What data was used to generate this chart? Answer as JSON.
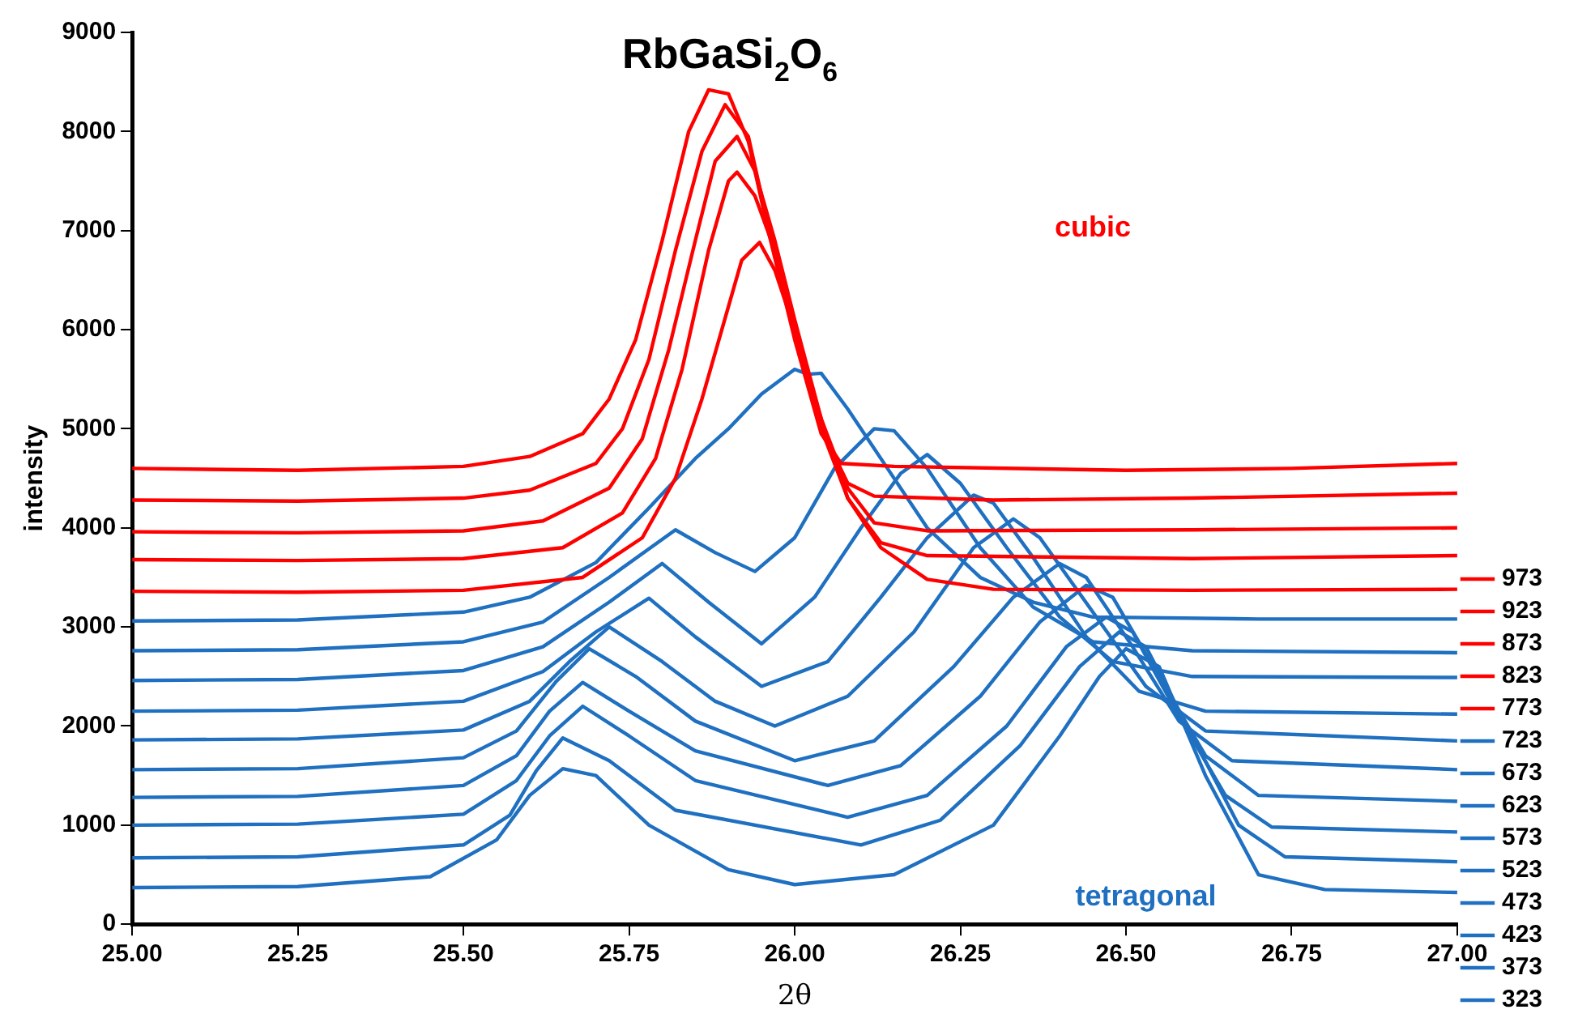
{
  "chart_data": {
    "type": "line",
    "title": "RbGaSi$_{2}$O$_{6}$",
    "xlabel": "2θ",
    "ylabel": "intensity",
    "xlim": [
      25,
      27
    ],
    "xticks": [
      {
        "value": 25,
        "label": "25.00"
      },
      {
        "value": 25.25,
        "label": "25.25"
      },
      {
        "value": 25.5,
        "label": "25.50"
      },
      {
        "value": 25.75,
        "label": "25.75"
      },
      {
        "value": 26,
        "label": "26.00"
      },
      {
        "value": 26.25,
        "label": "26.25"
      },
      {
        "value": 26.5,
        "label": "26.50"
      },
      {
        "value": 26.75,
        "label": "26.75"
      },
      {
        "value": 27,
        "label": "27.00"
      }
    ],
    "ylim": [
      0,
      9000
    ],
    "yticks": [
      0,
      1000,
      2000,
      3000,
      4000,
      5000,
      6000,
      7000,
      8000,
      9000
    ],
    "legend": "right",
    "marker": "none",
    "line_style": "solid",
    "annotations": [
      "cubic",
      "tetragonal"
    ],
    "series": [
      {
        "name": "973",
        "color": "#ff0000",
        "x": [
          25,
          25.25,
          25.5,
          25.6,
          25.68,
          25.72,
          25.76,
          25.8,
          25.84,
          25.87,
          25.9,
          25.93,
          25.96,
          26,
          26.04,
          26.07,
          26.15,
          26.5,
          26.75,
          27
        ],
        "values": [
          4600,
          4580,
          4620,
          4720,
          4950,
          5300,
          5900,
          6900,
          8000,
          8420,
          8380,
          7900,
          7000,
          5900,
          4950,
          4650,
          4620,
          4580,
          4600,
          4650
        ]
      },
      {
        "name": "923",
        "color": "#ff0000",
        "x": [
          25,
          25.25,
          25.5,
          25.6,
          25.7,
          25.74,
          25.78,
          25.82,
          25.86,
          25.895,
          25.93,
          25.96,
          26,
          26.04,
          26.08,
          26.12,
          26.3,
          26.6,
          27
        ],
        "values": [
          4280,
          4270,
          4300,
          4380,
          4650,
          5000,
          5700,
          6800,
          7800,
          8270,
          7950,
          7050,
          5950,
          5000,
          4450,
          4320,
          4280,
          4300,
          4350
        ]
      },
      {
        "name": "873",
        "color": "#ff0000",
        "x": [
          25,
          25.25,
          25.5,
          25.62,
          25.72,
          25.77,
          25.81,
          25.85,
          25.88,
          25.913,
          25.94,
          25.97,
          26,
          26.04,
          26.08,
          26.12,
          26.2,
          26.6,
          27
        ],
        "values": [
          3960,
          3950,
          3970,
          4070,
          4400,
          4900,
          5800,
          6900,
          7700,
          7950,
          7600,
          6900,
          6100,
          5100,
          4400,
          4050,
          3970,
          3980,
          4000
        ]
      },
      {
        "name": "823",
        "color": "#ff0000",
        "x": [
          25,
          25.25,
          25.5,
          25.65,
          25.74,
          25.79,
          25.83,
          25.87,
          25.9,
          25.913,
          25.94,
          25.97,
          26,
          26.04,
          26.08,
          26.13,
          26.2,
          26.6,
          27
        ],
        "values": [
          3680,
          3670,
          3690,
          3800,
          4150,
          4700,
          5600,
          6800,
          7500,
          7590,
          7350,
          6800,
          6000,
          5000,
          4300,
          3850,
          3720,
          3690,
          3720
        ]
      },
      {
        "name": "773",
        "color": "#ff0000",
        "x": [
          25,
          25.25,
          25.5,
          25.68,
          25.77,
          25.82,
          25.86,
          25.89,
          25.92,
          25.947,
          25.97,
          26,
          26.04,
          26.08,
          26.13,
          26.2,
          26.3,
          26.6,
          27
        ],
        "values": [
          3360,
          3350,
          3370,
          3500,
          3900,
          4500,
          5300,
          6000,
          6700,
          6880,
          6600,
          6000,
          5100,
          4300,
          3800,
          3480,
          3380,
          3370,
          3380
        ]
      },
      {
        "name": "723",
        "color": "#1f70c1",
        "x": [
          25,
          25.25,
          25.5,
          25.6,
          25.7,
          25.78,
          25.85,
          25.9,
          25.95,
          26,
          26.02,
          26.04,
          26.08,
          26.14,
          26.2,
          26.28,
          26.36,
          26.45,
          26.7,
          27
        ],
        "values": [
          3060,
          3070,
          3150,
          3300,
          3650,
          4200,
          4700,
          5000,
          5350,
          5600,
          5550,
          5560,
          5200,
          4600,
          4000,
          3500,
          3250,
          3100,
          3080,
          3080
        ]
      },
      {
        "name": "673",
        "color": "#1f70c1",
        "x": [
          25,
          25.25,
          25.5,
          25.62,
          25.72,
          25.82,
          25.88,
          25.94,
          26,
          26.06,
          26.12,
          26.15,
          26.2,
          26.28,
          26.36,
          26.45,
          26.6,
          27
        ],
        "values": [
          2760,
          2770,
          2850,
          3050,
          3500,
          3980,
          3750,
          3560,
          3900,
          4600,
          5000,
          4980,
          4600,
          3800,
          3200,
          2850,
          2760,
          2740
        ]
      },
      {
        "name": "623",
        "color": "#1f70c1",
        "x": [
          25,
          25.25,
          25.5,
          25.62,
          25.72,
          25.8,
          25.87,
          25.95,
          26.03,
          26.1,
          26.16,
          26.2,
          26.25,
          26.32,
          26.4,
          26.48,
          26.6,
          27
        ],
        "values": [
          2460,
          2470,
          2560,
          2800,
          3250,
          3640,
          3250,
          2830,
          3300,
          4000,
          4550,
          4740,
          4450,
          3800,
          3100,
          2650,
          2500,
          2490
        ]
      },
      {
        "name": "573",
        "color": "#1f70c1",
        "x": [
          25,
          25.25,
          25.5,
          25.62,
          25.7,
          25.78,
          25.85,
          25.95,
          26.05,
          26.13,
          26.2,
          26.27,
          26.3,
          26.36,
          26.44,
          26.52,
          26.62,
          27
        ],
        "values": [
          2150,
          2160,
          2250,
          2550,
          2950,
          3290,
          2900,
          2400,
          2650,
          3300,
          3900,
          4330,
          4250,
          3700,
          2900,
          2350,
          2150,
          2120
        ]
      },
      {
        "name": "523",
        "color": "#1f70c1",
        "x": [
          25,
          25.25,
          25.5,
          25.6,
          25.66,
          25.72,
          25.8,
          25.88,
          25.97,
          26.08,
          26.18,
          26.27,
          26.33,
          26.37,
          26.45,
          26.53,
          26.62,
          27
        ],
        "values": [
          1860,
          1870,
          1960,
          2250,
          2650,
          3000,
          2650,
          2250,
          2000,
          2300,
          2950,
          3800,
          4090,
          3900,
          3150,
          2400,
          1950,
          1850
        ]
      },
      {
        "name": "473",
        "color": "#1f70c1",
        "x": [
          25,
          25.25,
          25.5,
          25.58,
          25.64,
          25.69,
          25.76,
          25.85,
          26,
          26.12,
          26.24,
          26.33,
          26.4,
          26.44,
          26.51,
          26.58,
          26.66,
          27
        ],
        "values": [
          1560,
          1570,
          1680,
          1950,
          2450,
          2780,
          2500,
          2050,
          1650,
          1850,
          2600,
          3300,
          3640,
          3500,
          2800,
          2050,
          1650,
          1560
        ]
      },
      {
        "name": "423",
        "color": "#1f70c1",
        "x": [
          25,
          25.25,
          25.5,
          25.58,
          25.63,
          25.68,
          25.75,
          25.85,
          26.05,
          26.16,
          26.28,
          26.37,
          26.44,
          26.48,
          26.55,
          26.62,
          26.7,
          27
        ],
        "values": [
          1280,
          1290,
          1400,
          1700,
          2150,
          2440,
          2150,
          1750,
          1400,
          1600,
          2300,
          3050,
          3420,
          3300,
          2500,
          1700,
          1300,
          1240
        ]
      },
      {
        "name": "373",
        "color": "#1f70c1",
        "x": [
          25,
          25.25,
          25.5,
          25.58,
          25.63,
          25.68,
          25.75,
          25.85,
          26.08,
          26.2,
          26.32,
          26.41,
          26.47,
          26.51,
          26.58,
          26.65,
          26.72,
          27
        ],
        "values": [
          1000,
          1010,
          1110,
          1450,
          1900,
          2200,
          1900,
          1450,
          1080,
          1300,
          2000,
          2800,
          3100,
          2950,
          2100,
          1300,
          980,
          930
        ]
      },
      {
        "name": "323",
        "color": "#1f70c1",
        "x": [
          25,
          25.25,
          25.5,
          25.57,
          25.61,
          25.65,
          25.72,
          25.82,
          26.1,
          26.22,
          26.34,
          26.43,
          26.49,
          26.53,
          26.6,
          26.67,
          26.74,
          27
        ],
        "values": [
          670,
          680,
          800,
          1100,
          1550,
          1880,
          1650,
          1150,
          800,
          1050,
          1800,
          2600,
          2950,
          2800,
          1900,
          1000,
          680,
          630
        ]
      },
      {
        "color": "#1f70c1",
        "x": [
          25,
          25.25,
          25.45,
          25.55,
          25.6,
          25.65,
          25.7,
          25.78,
          25.9,
          26,
          26.15,
          26.3,
          26.4,
          26.46,
          26.5,
          26.55,
          26.62,
          26.7,
          26.8,
          27
        ],
        "values": [
          370,
          380,
          480,
          850,
          1300,
          1570,
          1500,
          1000,
          550,
          400,
          500,
          1000,
          1900,
          2500,
          2780,
          2600,
          1500,
          500,
          350,
          320
        ]
      }
    ]
  }
}
